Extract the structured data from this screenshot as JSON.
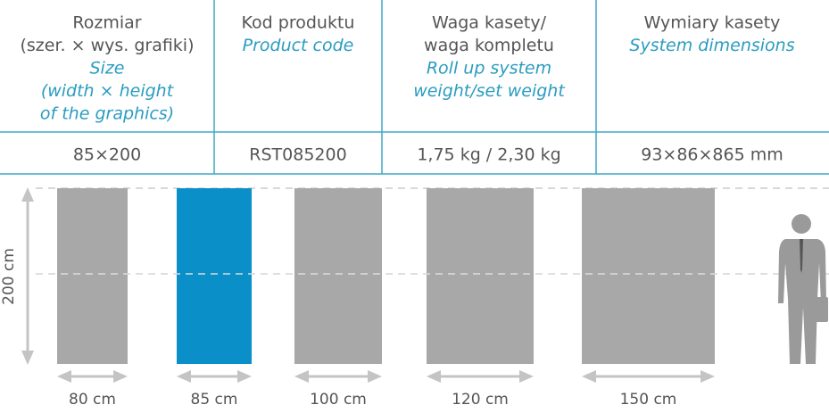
{
  "table": {
    "header": [
      {
        "pl": [
          "Rozmiar",
          "(szer. × wys. grafiki)"
        ],
        "en": [
          "Size",
          "(width × height",
          "of the graphics)"
        ]
      },
      {
        "pl": [
          "Kod produktu"
        ],
        "en": [
          "Product code"
        ]
      },
      {
        "pl": [
          "Waga kasety/",
          "waga kompletu"
        ],
        "en": [
          "Roll up system",
          "weight/set weight"
        ]
      },
      {
        "pl": [
          "Wymiary kasety"
        ],
        "en": [
          "System dimensions"
        ]
      }
    ],
    "rows": [
      [
        "85×200",
        "RST085200",
        "1,75 kg / 2,30 kg",
        "93×86×865 mm"
      ]
    ]
  },
  "diagram": {
    "height_label": "200 cm",
    "widths": [
      "80 cm",
      "85 cm",
      "100 cm",
      "120 cm",
      "150 cm"
    ]
  }
}
